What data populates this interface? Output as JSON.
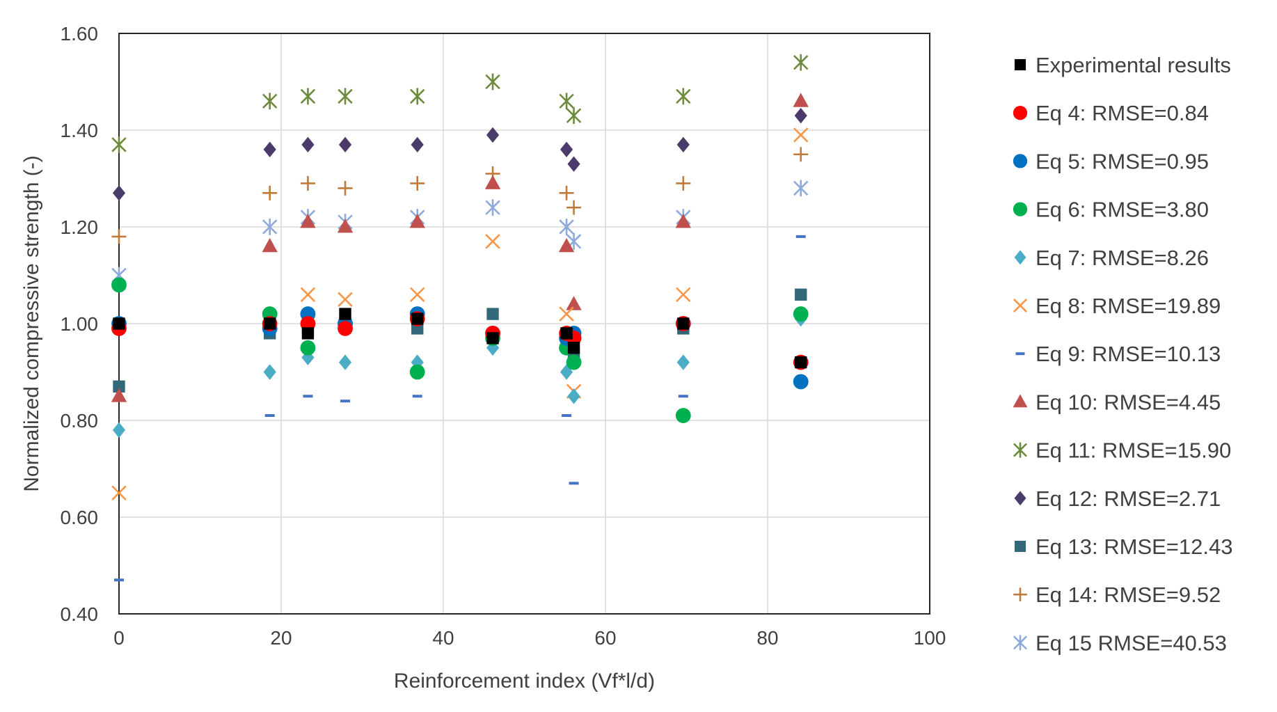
{
  "chart_data": {
    "type": "scatter",
    "title": "",
    "xlabel": "Reinforcement index (Vf*l/d)",
    "ylabel": "Normalized compressive strength (-)",
    "xlim": [
      0,
      100
    ],
    "ylim": [
      0.4,
      1.6
    ],
    "xticks": [
      0,
      20,
      40,
      60,
      80,
      100
    ],
    "xtick_labels": [
      "0",
      "20",
      "40",
      "60",
      "80",
      "100"
    ],
    "yticks": [
      0.4,
      0.6,
      0.8,
      1.0,
      1.2,
      1.4,
      1.6
    ],
    "ytick_labels": [
      "0.40",
      "0.60",
      "0.80",
      "1.00",
      "1.20",
      "1.40",
      "1.60"
    ],
    "grid": true,
    "legend_position": "right",
    "series": [
      {
        "name": "Experimental results",
        "marker": "square",
        "color": "#000000",
        "x": [
          0,
          18.6,
          23.3,
          27.9,
          36.8,
          46.1,
          55.2,
          56.1,
          69.6,
          84.1
        ],
        "y": [
          1.0,
          1.0,
          0.98,
          1.02,
          1.01,
          0.97,
          0.98,
          0.95,
          1.0,
          0.92
        ]
      },
      {
        "name": "Eq 4: RMSE=0.84",
        "marker": "circle",
        "color": "#ff0000",
        "x": [
          0,
          18.6,
          23.3,
          27.9,
          36.8,
          46.1,
          55.2,
          56.1,
          69.6,
          84.1
        ],
        "y": [
          0.99,
          1.0,
          1.0,
          0.99,
          1.01,
          0.98,
          0.98,
          0.97,
          1.0,
          0.92
        ]
      },
      {
        "name": "Eq 5: RMSE=0.95",
        "marker": "circle",
        "color": "#0070c0",
        "x": [
          0,
          18.6,
          23.3,
          27.9,
          36.8,
          46.1,
          55.2,
          56.1,
          69.6,
          84.1
        ],
        "y": [
          1.0,
          0.99,
          1.02,
          1.0,
          1.02,
          0.98,
          0.97,
          0.98,
          1.0,
          0.88
        ]
      },
      {
        "name": "Eq 6: RMSE=3.80",
        "marker": "circle",
        "color": "#00b050",
        "x": [
          0,
          18.6,
          23.3,
          27.9,
          36.8,
          46.1,
          55.2,
          56.1,
          69.6,
          84.1
        ],
        "y": [
          1.08,
          1.02,
          0.95,
          1.0,
          0.9,
          0.97,
          0.95,
          0.92,
          0.81,
          1.02
        ]
      },
      {
        "name": "Eq 7: RMSE=8.26",
        "marker": "diamond",
        "color": "#4bacc6",
        "x": [
          0,
          18.6,
          23.3,
          27.9,
          36.8,
          46.1,
          55.2,
          56.1,
          69.6,
          84.1
        ],
        "y": [
          0.78,
          0.9,
          0.93,
          0.92,
          0.92,
          0.95,
          0.9,
          0.85,
          0.92,
          1.01
        ]
      },
      {
        "name": "Eq 8: RMSE=19.89",
        "marker": "x",
        "color": "#f79646",
        "x": [
          0,
          18.6,
          23.3,
          27.9,
          36.8,
          46.1,
          55.2,
          56.1,
          69.6,
          84.1
        ],
        "y": [
          0.65,
          1.01,
          1.06,
          1.05,
          1.06,
          1.17,
          1.02,
          0.86,
          1.06,
          1.39
        ]
      },
      {
        "name": "Eq 9: RMSE=10.13",
        "marker": "dash",
        "color": "#4472c4",
        "x": [
          0,
          18.6,
          23.3,
          27.9,
          36.8,
          46.1,
          55.2,
          56.1,
          69.6,
          84.1
        ],
        "y": [
          0.47,
          0.81,
          0.85,
          0.84,
          0.85,
          0.96,
          0.81,
          0.67,
          0.85,
          1.18
        ]
      },
      {
        "name": "Eq 10: RMSE=4.45",
        "marker": "triangle",
        "color": "#c0504d",
        "x": [
          0,
          18.6,
          23.3,
          27.9,
          36.8,
          46.1,
          55.2,
          56.1,
          69.6,
          84.1
        ],
        "y": [
          0.85,
          1.16,
          1.21,
          1.2,
          1.21,
          1.29,
          1.16,
          1.04,
          1.21,
          1.46
        ]
      },
      {
        "name": "Eq 11: RMSE=15.90",
        "marker": "star",
        "color": "#6e8b3d",
        "x": [
          0,
          18.6,
          23.3,
          27.9,
          36.8,
          46.1,
          55.2,
          56.1,
          69.6,
          84.1
        ],
        "y": [
          1.37,
          1.46,
          1.47,
          1.47,
          1.47,
          1.5,
          1.46,
          1.43,
          1.47,
          1.54
        ]
      },
      {
        "name": "Eq 12: RMSE=2.71",
        "marker": "diamond",
        "color": "#4b3b6b",
        "x": [
          0,
          18.6,
          23.3,
          27.9,
          36.8,
          46.1,
          55.2,
          56.1,
          69.6,
          84.1
        ],
        "y": [
          1.27,
          1.36,
          1.37,
          1.37,
          1.37,
          1.39,
          1.36,
          1.33,
          1.37,
          1.43
        ]
      },
      {
        "name": "Eq 13: RMSE=12.43",
        "marker": "square",
        "color": "#31697a",
        "x": [
          0,
          18.6,
          23.3,
          27.9,
          36.8,
          46.1,
          55.2,
          56.1,
          69.6,
          84.1
        ],
        "y": [
          0.87,
          0.98,
          0.99,
          1.0,
          0.99,
          1.02,
          0.98,
          0.94,
          0.99,
          1.06
        ]
      },
      {
        "name": "Eq 14: RMSE=9.52",
        "marker": "plus",
        "color": "#c07a3a",
        "x": [
          0,
          18.6,
          23.3,
          27.9,
          36.8,
          46.1,
          55.2,
          56.1,
          69.6,
          84.1
        ],
        "y": [
          1.18,
          1.27,
          1.29,
          1.28,
          1.29,
          1.31,
          1.27,
          1.24,
          1.29,
          1.35
        ]
      },
      {
        "name": "Eq 15 RMSE=40.53",
        "marker": "star",
        "color": "#8eaadb",
        "x": [
          0,
          18.6,
          23.3,
          27.9,
          36.8,
          46.1,
          55.2,
          56.1,
          69.6,
          84.1
        ],
        "y": [
          1.1,
          1.2,
          1.22,
          1.21,
          1.22,
          1.24,
          1.2,
          1.17,
          1.22,
          1.28
        ]
      }
    ]
  }
}
